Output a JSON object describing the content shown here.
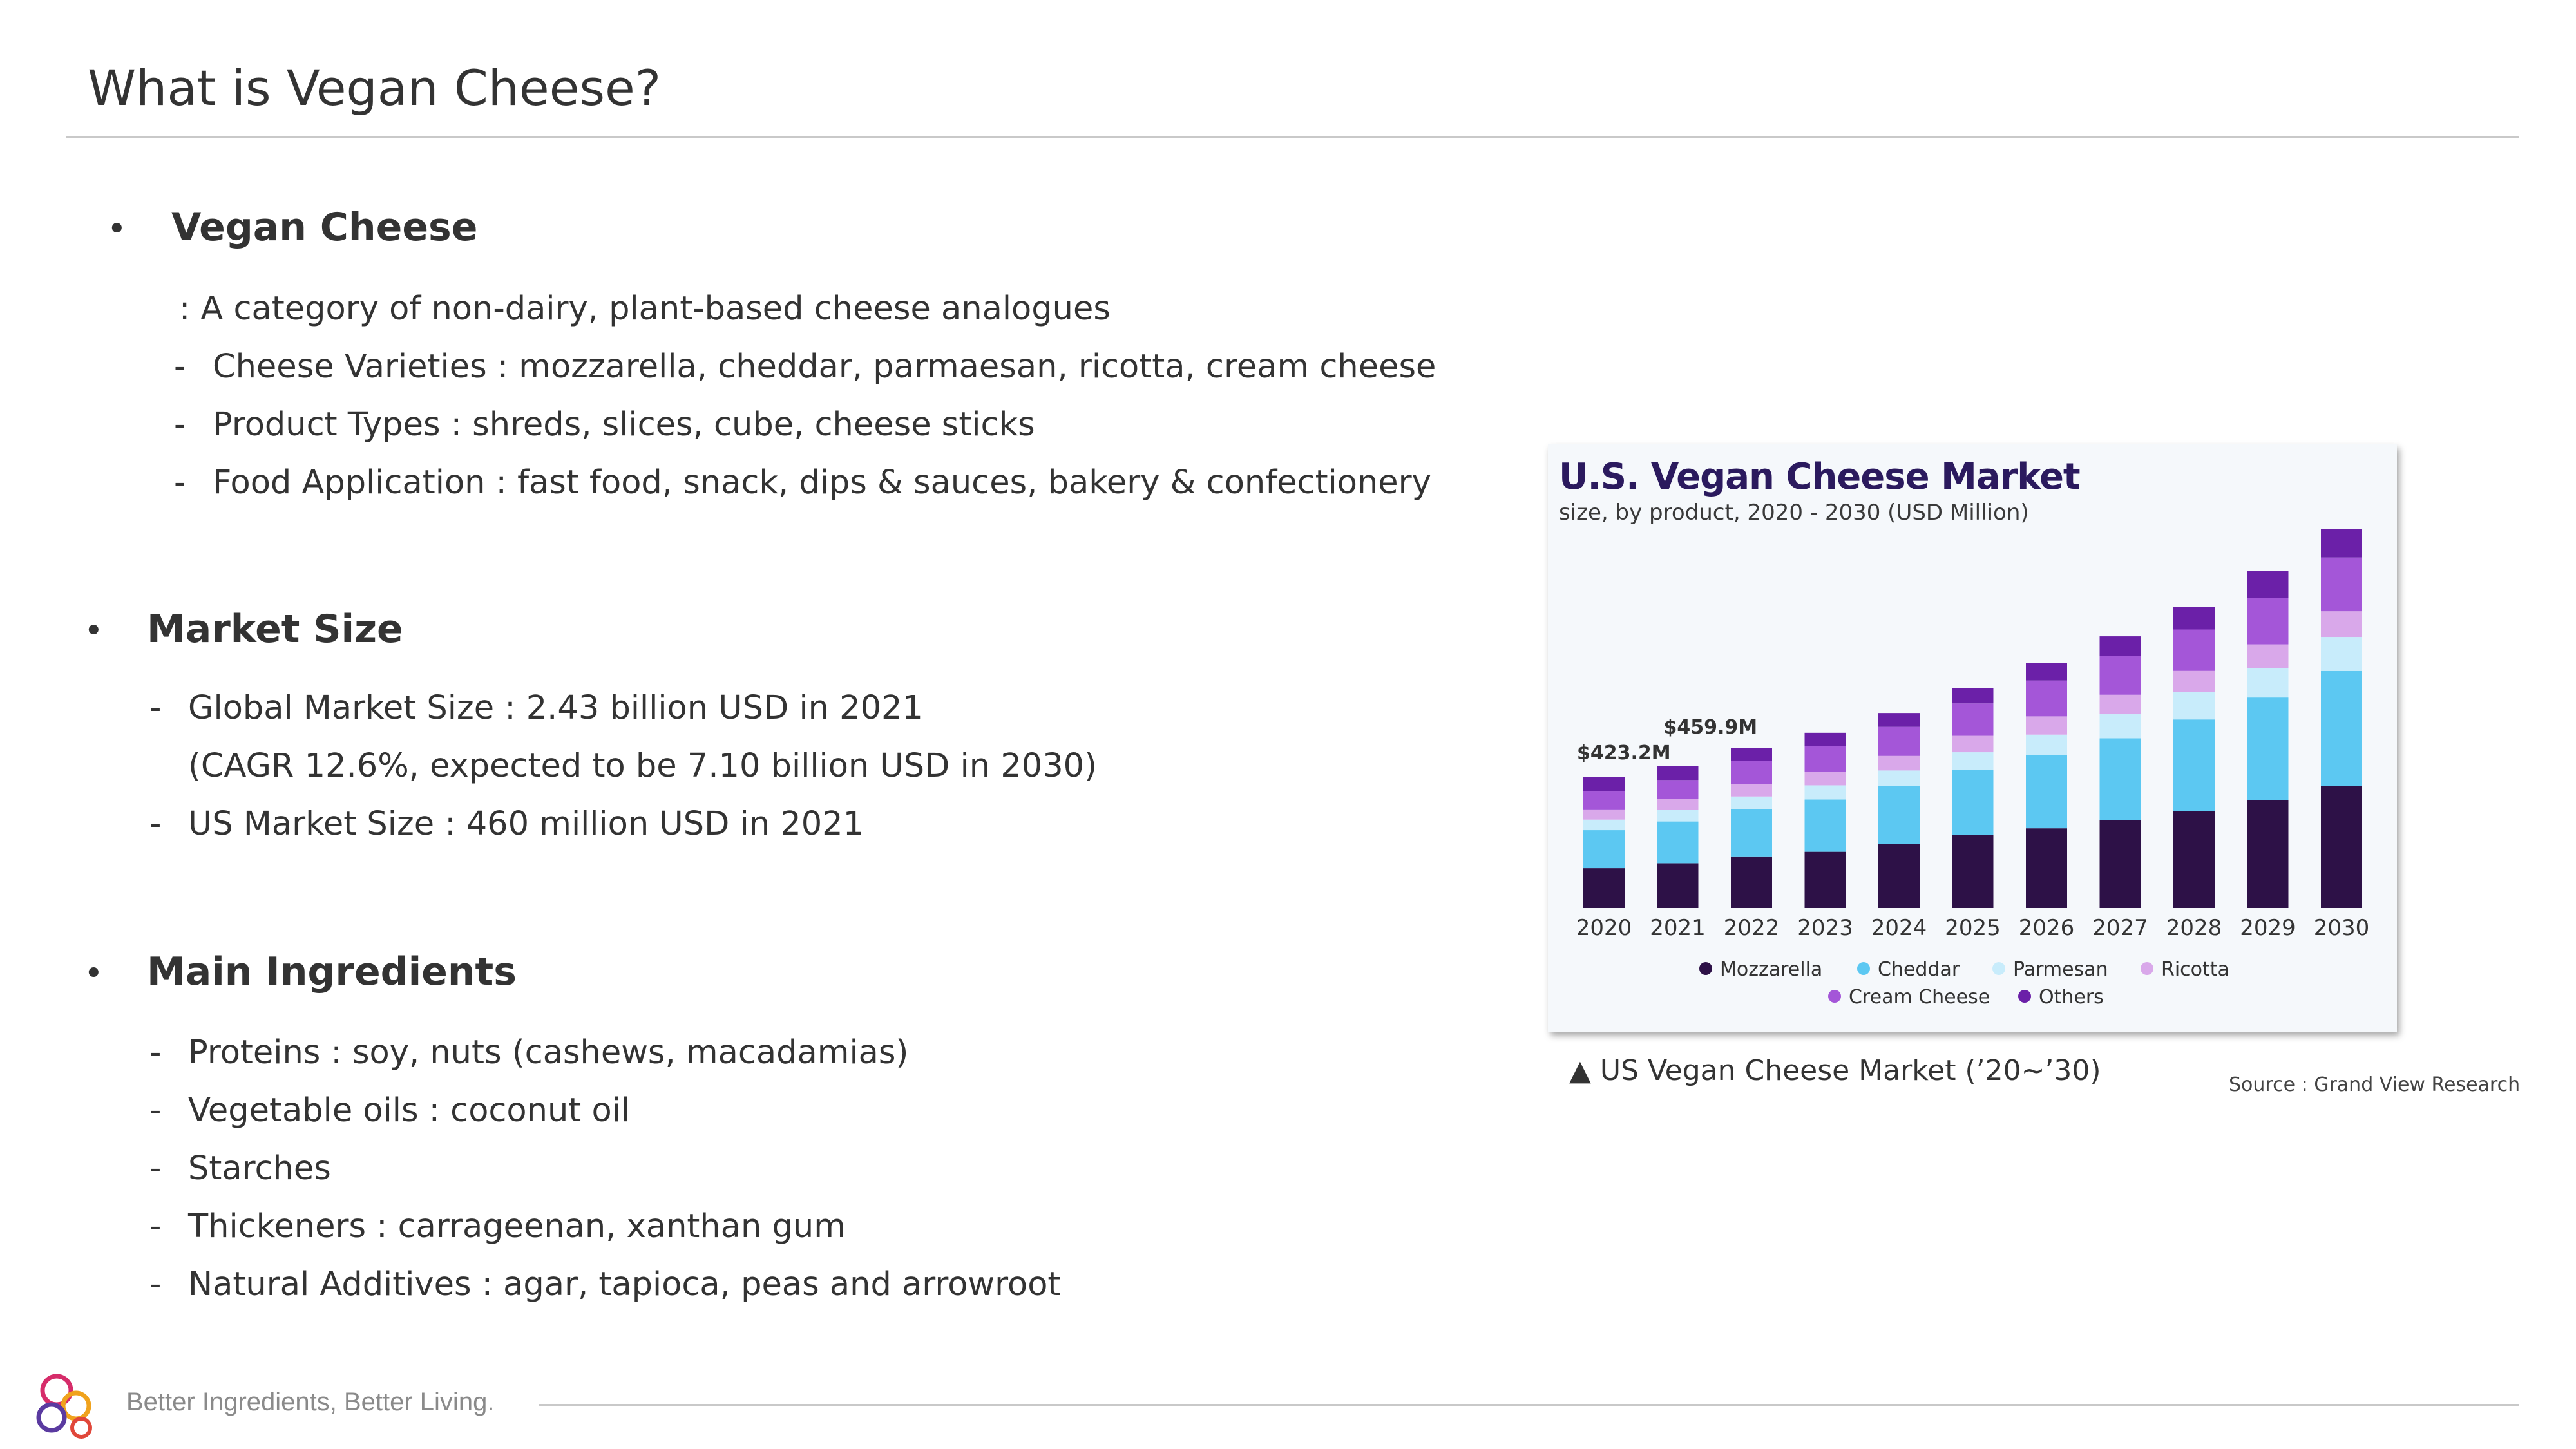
{
  "page": {
    "title": "What is Vegan Cheese?"
  },
  "sections": [
    {
      "heading": "Vegan Cheese",
      "lines": [
        {
          "prefix": ":",
          "text": "A category of non-dairy, plant-based cheese analogues"
        },
        {
          "prefix": "-",
          "text": "Cheese Varieties : mozzarella, cheddar, parmaesan, ricotta, cream cheese"
        },
        {
          "prefix": "-",
          "text": "Product Types : shreds, slices, cube, cheese sticks"
        },
        {
          "prefix": "-",
          "text": "Food Application : fast food, snack, dips & sauces, bakery & confectionery"
        }
      ]
    },
    {
      "heading": "Market Size",
      "lines": [
        {
          "prefix": "-",
          "text": "Global Market Size : 2.43 billion USD in 2021"
        },
        {
          "prefix": "",
          "text": "(CAGR 12.6%, expected to be 7.10 billion USD in 2030)"
        },
        {
          "prefix": "-",
          "text": "US Market Size : 460 million USD in 2021"
        }
      ]
    },
    {
      "heading": "Main Ingredients",
      "lines": [
        {
          "prefix": "-",
          "text": "Proteins : soy, nuts (cashews, macadamias)"
        },
        {
          "prefix": "-",
          "text": "Vegetable oils : coconut oil"
        },
        {
          "prefix": "-",
          "text": "Starches"
        },
        {
          "prefix": "-",
          "text": "Thickeners : carrageenan, xanthan gum"
        },
        {
          "prefix": "-",
          "text": "Natural Additives : agar, tapioca, peas and arrowroot"
        }
      ]
    }
  ],
  "caption": "▲ US Vegan Cheese Market (’20~’30)",
  "source": "Source : Grand View Research",
  "footer": {
    "tagline": "Better Ingredients, Better Living."
  },
  "colors": {
    "mozzarella": "#2d1147",
    "cheddar": "#5cc8f2",
    "parmesan": "#c8ecfb",
    "ricotta": "#d9a8ea",
    "cream_cheese": "#a456d8",
    "others": "#6b20a8",
    "chart_title": "#2b1a5e"
  },
  "chart_data": {
    "type": "bar",
    "stacked": true,
    "title": "U.S. Vegan Cheese Market",
    "subtitle": "size, by product, 2020 - 2030 (USD Million)",
    "categories": [
      "2020",
      "2021",
      "2022",
      "2023",
      "2024",
      "2025",
      "2026",
      "2027",
      "2028",
      "2029",
      "2030"
    ],
    "series": [
      {
        "name": "Mozzarella",
        "color_key": "mozzarella",
        "values": [
          129,
          145,
          167,
          182,
          207,
          236,
          258,
          284,
          314,
          349,
          394
        ]
      },
      {
        "name": "Cheddar",
        "color_key": "cheddar",
        "values": [
          123,
          135,
          154,
          169,
          188,
          211,
          236,
          265,
          296,
          332,
          373
        ]
      },
      {
        "name": "Parmesan",
        "color_key": "parmesan",
        "values": [
          34,
          37,
          40,
          46,
          50,
          57,
          67,
          78,
          88,
          94,
          110
        ]
      },
      {
        "name": "Ricotta",
        "color_key": "ricotta",
        "values": [
          33,
          36,
          39,
          43,
          47,
          53,
          59,
          63,
          69,
          78,
          83
        ]
      },
      {
        "name": "Cream Cheese",
        "color_key": "cream_cheese",
        "values": [
          58,
          61,
          75,
          84,
          94,
          105,
          116,
          126,
          134,
          150,
          174
        ]
      },
      {
        "name": "Others",
        "color_key": "others",
        "values": [
          46,
          46,
          43,
          43,
          45,
          50,
          57,
          63,
          72,
          87,
          93
        ]
      }
    ],
    "data_labels": [
      {
        "category": "2020",
        "text": "$423.2M"
      },
      {
        "category": "2021",
        "text": "$459.9M"
      }
    ],
    "ylim": [
      0,
      1250
    ],
    "legend": "bottom",
    "grid": false
  }
}
